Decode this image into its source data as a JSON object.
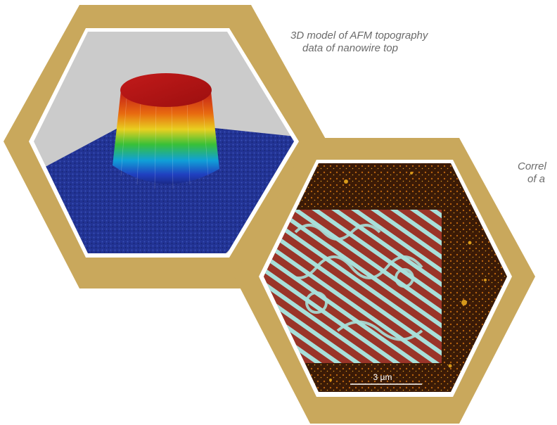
{
  "captions": {
    "afm_3d": {
      "line1": "3D model of AFM topography",
      "line2": "data of nanowire top"
    },
    "correlated": {
      "line1": "Correl",
      "line2": "of a"
    }
  },
  "scale_bar": {
    "label": "3 µm"
  },
  "colors": {
    "frame_gold": "#c9a85c",
    "background_gray": "#c9c9c9",
    "substrate_blue": "#1e2f8a",
    "afm_brown": "#3a1a06",
    "stripe_cyan": "#9fdcd6",
    "stripe_red": "#8a2a20"
  }
}
